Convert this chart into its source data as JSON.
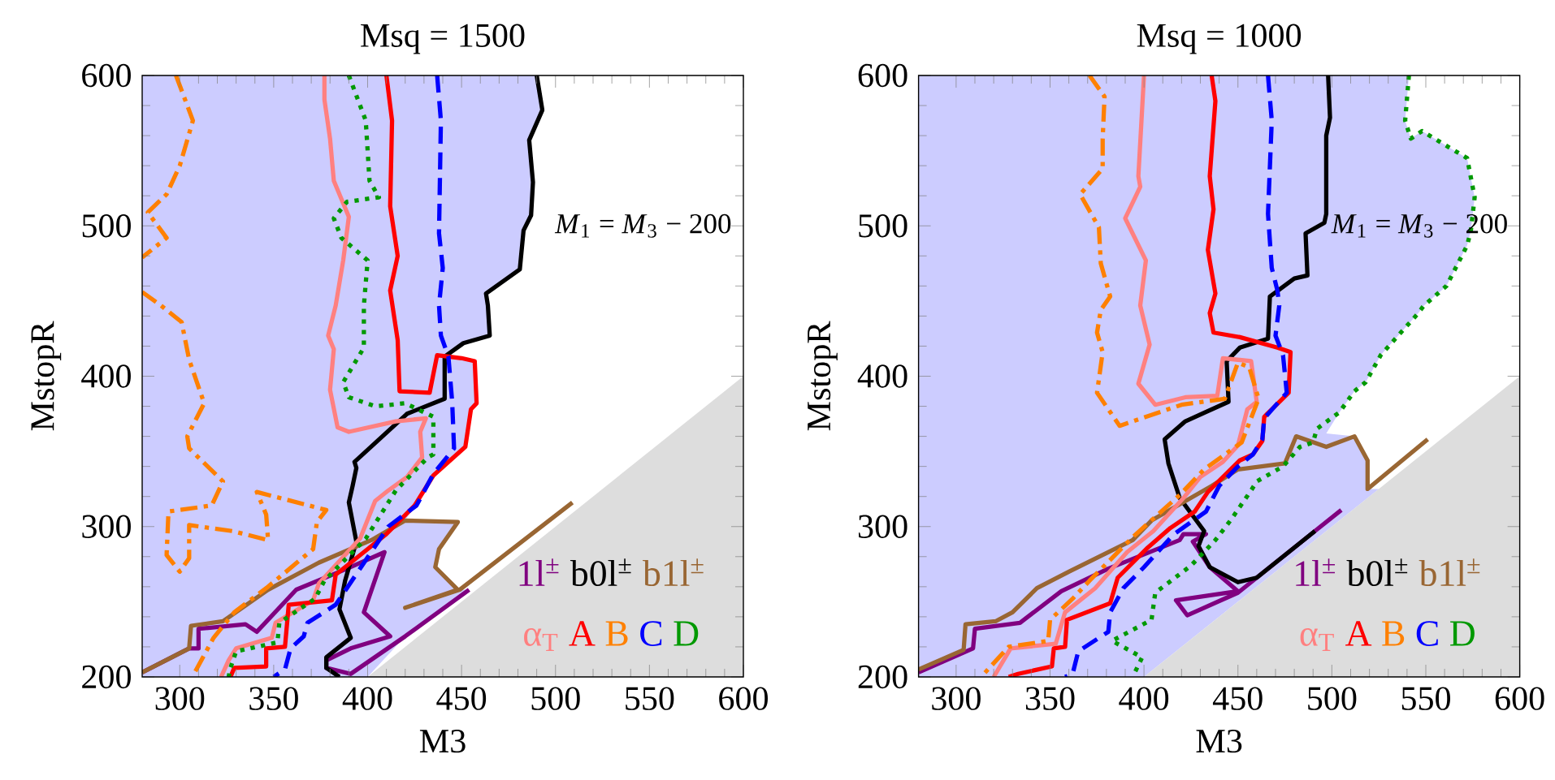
{
  "chart_data": [
    {
      "type": "line",
      "title": "Msq = 1500",
      "xlabel": "M3",
      "ylabel": "MstopR",
      "xlim": [
        280,
        600
      ],
      "ylim": [
        200,
        600
      ],
      "xticks": [
        300,
        350,
        400,
        450,
        500,
        550,
        600
      ],
      "yticks": [
        200,
        300,
        400,
        500,
        600
      ],
      "legend": "bottom right",
      "annotations": [
        "*M*$_{1}$ = *M*$_{3}$ − 200"
      ],
      "series": [
        {
          "type": "area",
          "color": "#ccccff",
          "x": [
            490,
            493,
            486,
            488,
            487,
            483,
            481,
            463,
            465,
            451,
            441,
            450,
            457,
            458,
            455,
            452,
            435,
            425,
            420,
            448,
            438,
            436,
            448,
            454,
            420,
            400,
            280,
            280
          ],
          "values": [
            600,
            577,
            557,
            529,
            507,
            497,
            471,
            455,
            427,
            422,
            413,
            412,
            410,
            382,
            378,
            353,
            334,
            314,
            304,
            303,
            285,
            273,
            258,
            258,
            227,
            200,
            200,
            600
          ]
        },
        {
          "type": "area",
          "color": "#dddddd",
          "x": [
            400,
            600,
            600
          ],
          "values": [
            200,
            400,
            200
          ]
        },
        {
          "name": "1l$^{±}$",
          "color": "#800080",
          "line_style": "solid",
          "x": [
            280,
            305,
            310,
            310,
            335,
            341,
            362,
            389,
            409,
            398,
            412,
            391,
            378,
            378,
            391,
            420,
            454
          ],
          "values": [
            203,
            219,
            219,
            232,
            235,
            230,
            258,
            272,
            283,
            243,
            227,
            219,
            211,
            206,
            202,
            227,
            258
          ]
        },
        {
          "name": "b0l$^{±}$",
          "color": "#000000",
          "line_style": "solid",
          "x": [
            490,
            493,
            486,
            488,
            487,
            483,
            481,
            463,
            464,
            465,
            451,
            441,
            441,
            421,
            393,
            394,
            392,
            390,
            394,
            388,
            385,
            391,
            378,
            378,
            385
          ],
          "values": [
            600,
            577,
            557,
            529,
            507,
            497,
            471,
            455,
            447,
            427,
            422,
            413,
            385,
            375,
            343,
            339,
            327,
            316,
            290,
            264,
            245,
            226,
            213,
            206,
            200
          ]
        },
        {
          "name": "b1l$^{±}$",
          "color": "#996633",
          "line_style": "solid",
          "x": [
            280,
            305,
            306,
            323,
            347,
            374,
            402,
            420,
            448,
            438,
            436,
            448,
            420,
            449,
            509
          ],
          "values": [
            203,
            219,
            234,
            237,
            258,
            276,
            291,
            304,
            303,
            285,
            273,
            258,
            246,
            258,
            316
          ]
        },
        {
          "name": "α$_{T}$",
          "color": "#ff8080",
          "line_style": "solid",
          "x": [
            377,
            377,
            380,
            382,
            390,
            387,
            383,
            379,
            382,
            380,
            384,
            390,
            415,
            431,
            428,
            429,
            421,
            411,
            404,
            396,
            374,
            371,
            351,
            349,
            330,
            326,
            322
          ],
          "values": [
            600,
            584,
            558,
            530,
            506,
            477,
            447,
            427,
            418,
            391,
            366,
            363,
            370,
            372,
            363,
            346,
            333,
            324,
            317,
            292,
            262,
            251,
            236,
            226,
            219,
            211,
            200
          ]
        },
        {
          "name": "A",
          "color": "#ff0000",
          "line_style": "solid",
          "x": [
            410,
            413,
            412,
            416,
            412,
            416,
            417,
            433,
            437,
            450,
            457,
            458,
            455,
            452,
            435,
            425,
            410,
            383,
            381,
            358,
            356,
            346,
            346,
            329,
            327
          ],
          "values": [
            600,
            570,
            513,
            480,
            457,
            424,
            390,
            389,
            414,
            412,
            410,
            382,
            378,
            353,
            334,
            314,
            295,
            268,
            251,
            248,
            220,
            219,
            207,
            206,
            200
          ]
        },
        {
          "name": "B",
          "color": "#ff8000",
          "line_style": "dashdot",
          "x": [
            298,
            307,
            300,
            293,
            283,
            293,
            280,
            null,
            280,
            290,
            298,
            301,
            305,
            313,
            304,
            305,
            323,
            317,
            294,
            293,
            300,
            305,
            305,
            328,
            347,
            346,
            341,
            378,
            373,
            371,
            347,
            329,
            318,
            308
          ],
          "values": [
            600,
            570,
            540,
            521,
            509,
            492,
            479,
            null,
            456,
            447,
            439,
            436,
            411,
            382,
            360,
            352,
            330,
            314,
            310,
            281,
            270,
            279,
            301,
            297,
            291,
            308,
            323,
            311,
            303,
            285,
            260,
            243,
            226,
            203
          ]
        },
        {
          "name": "C",
          "color": "#0000ff",
          "line_style": "dashed",
          "x": [
            437,
            439,
            438,
            440,
            438,
            439,
            443,
            445,
            446,
            435,
            426,
            411,
            383,
            368,
            366,
            359,
            356,
            350
          ],
          "values": [
            600,
            570,
            495,
            472,
            447,
            427,
            413,
            383,
            352,
            335,
            314,
            300,
            248,
            236,
            227,
            219,
            205,
            200
          ]
        },
        {
          "name": "D",
          "color": "#009900",
          "line_style": "dotted",
          "x": [
            390,
            399,
            401,
            406,
            389,
            382,
            386,
            400,
            398,
            398,
            387,
            390,
            404,
            420,
            435,
            435,
            432,
            415,
            399,
            377,
            372,
            353,
            352,
            330,
            327,
            326
          ],
          "values": [
            600,
            570,
            530,
            519,
            516,
            505,
            492,
            477,
            447,
            419,
            396,
            386,
            380,
            382,
            373,
            348,
            346,
            324,
            292,
            264,
            252,
            236,
            223,
            217,
            206,
            200
          ]
        }
      ]
    },
    {
      "type": "line",
      "title": "Msq = 1000",
      "xlabel": "M3",
      "ylabel": "MstopR",
      "xlim": [
        280,
        600
      ],
      "ylim": [
        200,
        600
      ],
      "xticks": [
        300,
        350,
        400,
        450,
        500,
        550,
        600
      ],
      "yticks": [
        200,
        300,
        400,
        500,
        600
      ],
      "legend": "bottom right",
      "annotations": [
        "*M*$_{1}$ = *M*$_{3}$ − 200"
      ],
      "series": [
        {
          "type": "area",
          "color": "#ccccff",
          "x": [
            541,
            539,
            542,
            548,
            572,
            576,
            574,
            572,
            561,
            549,
            546,
            526,
            518,
            512,
            504,
            497,
            512,
            519,
            519,
            525,
            400,
            280,
            280
          ],
          "values": [
            600,
            570,
            558,
            563,
            545,
            519,
            497,
            487,
            460,
            447,
            442,
            414,
            396,
            390,
            376,
            362,
            360,
            344,
            325,
            325,
            200,
            200,
            600
          ]
        },
        {
          "type": "area",
          "color": "#dddddd",
          "x": [
            400,
            600,
            600
          ],
          "values": [
            200,
            400,
            200
          ]
        },
        {
          "name": "1l$^{±}$",
          "color": "#800080",
          "line_style": "solid",
          "x": [
            280,
            309,
            310,
            334,
            356,
            381,
            419,
            421,
            433,
            426,
            435,
            450,
            417,
            423,
            450,
            491,
            505
          ],
          "values": [
            203,
            219,
            232,
            236,
            257,
            272,
            291,
            295,
            295,
            290,
            273,
            257,
            251,
            241,
            256,
            297,
            311
          ]
        },
        {
          "name": "b0l$^{±}$",
          "color": "#000000",
          "line_style": "solid",
          "x": [
            498,
            499,
            497,
            497,
            496,
            486,
            487,
            480,
            467,
            466,
            451,
            444,
            445,
            422,
            411,
            413,
            419,
            432,
            429,
            435,
            450,
            460,
            491
          ],
          "values": [
            600,
            572,
            560,
            508,
            502,
            495,
            467,
            465,
            453,
            425,
            419,
            410,
            383,
            370,
            358,
            342,
            319,
            297,
            287,
            273,
            263,
            266,
            297
          ]
        },
        {
          "name": "b1l$^{±}$",
          "color": "#996633",
          "line_style": "solid",
          "x": [
            280,
            304,
            305,
            321,
            330,
            343,
            360,
            394,
            404,
            436,
            450,
            475,
            481,
            497,
            512,
            519,
            519,
            551
          ],
          "values": [
            205,
            218,
            235,
            237,
            243,
            259,
            270,
            291,
            304,
            327,
            338,
            342,
            360,
            353,
            360,
            344,
            325,
            358
          ]
        },
        {
          "name": "α$_{T}$",
          "color": "#ff8080",
          "line_style": "solid",
          "x": [
            400,
            397,
            398,
            390,
            401,
            398,
            403,
            397,
            406,
            422,
            439,
            442,
            457,
            460,
            455,
            450,
            442,
            430,
            421,
            405,
            391,
            374,
            358,
            353,
            329,
            320
          ],
          "values": [
            600,
            533,
            526,
            505,
            477,
            447,
            421,
            395,
            381,
            386,
            387,
            412,
            410,
            383,
            378,
            354,
            343,
            333,
            319,
            297,
            283,
            259,
            243,
            222,
            219,
            200
          ]
        },
        {
          "name": "A",
          "color": "#ff0000",
          "line_style": "solid",
          "x": [
            436,
            438,
            435,
            437,
            434,
            438,
            435,
            437,
            451,
            471,
            478,
            477,
            464,
            463,
            458,
            451,
            434,
            427,
            414,
            402,
            386,
            382,
            359,
            358,
            352,
            351,
            333,
            328
          ],
          "values": [
            600,
            583,
            533,
            511,
            484,
            455,
            442,
            429,
            426,
            419,
            416,
            389,
            373,
            357,
            348,
            344,
            323,
            310,
            299,
            286,
            266,
            249,
            238,
            220,
            219,
            207,
            202,
            200
          ]
        },
        {
          "name": "B",
          "color": "#ff8000",
          "line_style": "dashdot",
          "x": [
            371,
            379,
            378,
            378,
            366,
            376,
            377,
            382,
            377,
            375,
            378,
            375,
            387,
            420,
            443,
            450,
            456,
            461,
            452,
            432,
            419,
            394,
            371,
            362,
            350,
            349,
            328,
            314
          ],
          "values": [
            600,
            586,
            558,
            538,
            521,
            499,
            475,
            453,
            444,
            429,
            416,
            389,
            367,
            381,
            385,
            409,
            406,
            385,
            356,
            338,
            321,
            293,
            264,
            252,
            238,
            224,
            220,
            201
          ]
        },
        {
          "name": "C",
          "color": "#0000ff",
          "line_style": "dashed",
          "x": [
            466,
            468,
            466,
            468,
            471,
            472,
            470,
            474,
            476,
            464,
            463,
            458,
            450,
            440,
            433,
            416,
            400,
            389,
            382,
            381,
            365,
            362,
            358
          ],
          "values": [
            600,
            570,
            508,
            472,
            457,
            447,
            427,
            414,
            389,
            372,
            358,
            348,
            340,
            327,
            310,
            295,
            273,
            259,
            243,
            230,
            217,
            202,
            200
          ]
        },
        {
          "name": "D",
          "color": "#009900",
          "line_style": "dotted",
          "x": [
            541,
            539,
            542,
            548,
            572,
            576,
            574,
            572,
            561,
            549,
            546,
            526,
            518,
            512,
            504,
            492,
            490,
            483,
            474,
            460,
            457,
            446,
            438,
            425,
            406,
            404,
            383,
            399,
            394
          ],
          "values": [
            600,
            570,
            558,
            563,
            545,
            519,
            497,
            487,
            460,
            447,
            442,
            414,
            396,
            390,
            376,
            365,
            356,
            353,
            340,
            330,
            324,
            304,
            291,
            274,
            256,
            238,
            224,
            213,
            200
          ]
        }
      ]
    }
  ]
}
